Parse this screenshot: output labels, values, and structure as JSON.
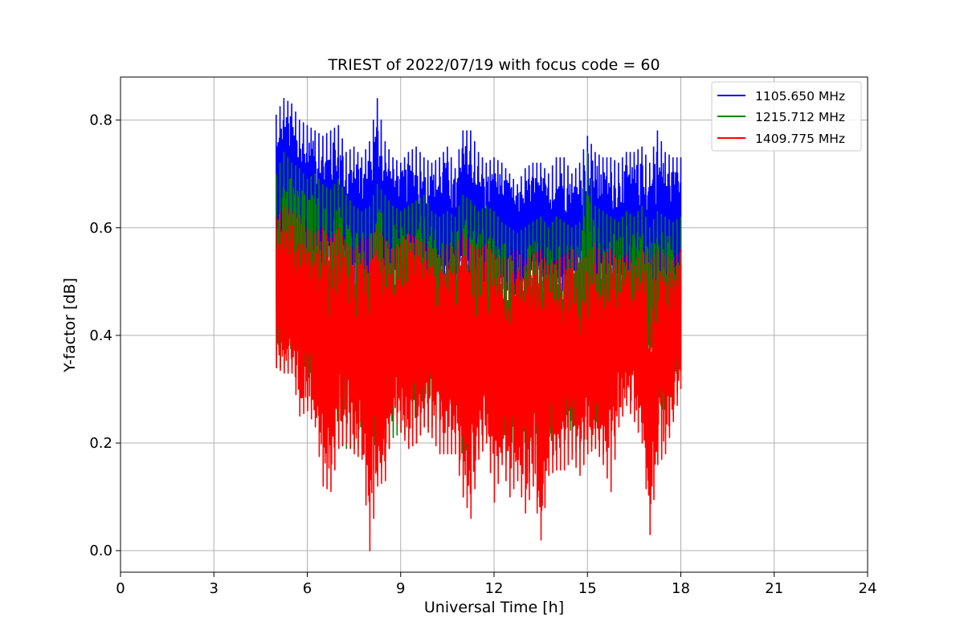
{
  "chart_data": {
    "type": "line",
    "title": "TRIEST of 2022/07/19 with focus code = 60",
    "xlabel": "Universal Time [h]",
    "ylabel": "Y-factor [dB]",
    "xlim": [
      0,
      24
    ],
    "ylim": [
      -0.04,
      0.88
    ],
    "xticks": [
      0,
      3,
      6,
      9,
      12,
      15,
      18,
      21,
      24
    ],
    "xtick_labels": [
      "0",
      "3",
      "6",
      "9",
      "12",
      "15",
      "18",
      "21",
      "24"
    ],
    "yticks": [
      0.0,
      0.2,
      0.4,
      0.6,
      0.8
    ],
    "ytick_labels": [
      "0.0",
      "0.2",
      "0.4",
      "0.6",
      "0.8"
    ],
    "grid": true,
    "legend_position": "top-right",
    "series": [
      {
        "name": "1105.650 MHz",
        "color": "#0000ff",
        "x": [
          5.0,
          5.25,
          5.5,
          5.75,
          6.0,
          6.25,
          6.5,
          6.75,
          7.0,
          7.25,
          7.5,
          7.75,
          8.0,
          8.25,
          8.5,
          8.75,
          9.0,
          9.25,
          9.5,
          9.75,
          10.0,
          10.25,
          10.5,
          10.75,
          11.0,
          11.25,
          11.5,
          11.75,
          12.0,
          12.25,
          12.5,
          12.75,
          13.0,
          13.25,
          13.5,
          13.75,
          14.0,
          14.25,
          14.5,
          14.75,
          15.0,
          15.25,
          15.5,
          15.75,
          16.0,
          16.25,
          16.5,
          16.75,
          17.0,
          17.25,
          17.5,
          17.75,
          18.0
        ],
        "ymax": [
          0.81,
          0.84,
          0.83,
          0.8,
          0.79,
          0.78,
          0.77,
          0.78,
          0.79,
          0.74,
          0.75,
          0.73,
          0.76,
          0.84,
          0.76,
          0.73,
          0.72,
          0.74,
          0.75,
          0.73,
          0.72,
          0.73,
          0.75,
          0.71,
          0.78,
          0.78,
          0.74,
          0.72,
          0.73,
          0.72,
          0.7,
          0.68,
          0.71,
          0.72,
          0.72,
          0.7,
          0.73,
          0.73,
          0.7,
          0.72,
          0.77,
          0.74,
          0.73,
          0.73,
          0.72,
          0.74,
          0.74,
          0.75,
          0.72,
          0.78,
          0.74,
          0.73,
          0.73
        ],
        "ymin": [
          0.46,
          0.5,
          0.53,
          0.5,
          0.49,
          0.5,
          0.48,
          0.47,
          0.48,
          0.46,
          0.47,
          0.45,
          0.44,
          0.46,
          0.47,
          0.48,
          0.49,
          0.47,
          0.46,
          0.45,
          0.47,
          0.48,
          0.46,
          0.45,
          0.46,
          0.47,
          0.45,
          0.46,
          0.46,
          0.47,
          0.46,
          0.45,
          0.45,
          0.46,
          0.45,
          0.44,
          0.45,
          0.46,
          0.45,
          0.46,
          0.47,
          0.45,
          0.44,
          0.45,
          0.46,
          0.44,
          0.43,
          0.4,
          0.42,
          0.43,
          0.44,
          0.45,
          0.46
        ]
      },
      {
        "name": "1215.712 MHz",
        "color": "#008000",
        "x": [
          5.0,
          5.25,
          5.5,
          5.75,
          6.0,
          6.25,
          6.5,
          6.75,
          7.0,
          7.25,
          7.5,
          7.75,
          8.0,
          8.25,
          8.5,
          8.75,
          9.0,
          9.25,
          9.5,
          9.75,
          10.0,
          10.25,
          10.5,
          10.75,
          11.0,
          11.25,
          11.5,
          11.75,
          12.0,
          12.25,
          12.5,
          12.75,
          13.0,
          13.25,
          13.5,
          13.75,
          14.0,
          14.25,
          14.5,
          14.75,
          15.0,
          15.25,
          15.5,
          15.75,
          16.0,
          16.25,
          16.5,
          16.75,
          17.0,
          17.25,
          17.5,
          17.75,
          18.0
        ],
        "ymax": [
          0.7,
          0.74,
          0.72,
          0.71,
          0.69,
          0.7,
          0.68,
          0.67,
          0.69,
          0.66,
          0.64,
          0.63,
          0.64,
          0.68,
          0.66,
          0.64,
          0.63,
          0.64,
          0.65,
          0.66,
          0.63,
          0.62,
          0.63,
          0.62,
          0.66,
          0.65,
          0.63,
          0.64,
          0.63,
          0.61,
          0.6,
          0.59,
          0.6,
          0.61,
          0.62,
          0.6,
          0.62,
          0.61,
          0.6,
          0.61,
          0.74,
          0.64,
          0.63,
          0.62,
          0.61,
          0.63,
          0.62,
          0.64,
          0.6,
          0.63,
          0.62,
          0.61,
          0.62
        ],
        "ymin": [
          0.34,
          0.34,
          0.34,
          0.3,
          0.28,
          0.27,
          0.23,
          0.2,
          0.2,
          0.19,
          0.19,
          0.19,
          0.16,
          0.14,
          0.17,
          0.21,
          0.22,
          0.21,
          0.2,
          0.23,
          0.23,
          0.24,
          0.23,
          0.22,
          0.1,
          0.18,
          0.19,
          0.22,
          0.15,
          0.18,
          0.16,
          0.18,
          0.14,
          0.15,
          0.13,
          0.16,
          0.19,
          0.2,
          0.18,
          0.19,
          0.2,
          0.19,
          0.18,
          0.23,
          0.28,
          0.3,
          0.29,
          0.26,
          0.28,
          0.2,
          0.22,
          0.25,
          0.33
        ]
      },
      {
        "name": "1409.775 MHz",
        "color": "#ff0000",
        "x": [
          5.0,
          5.25,
          5.5,
          5.75,
          6.0,
          6.25,
          6.5,
          6.75,
          7.0,
          7.25,
          7.5,
          7.75,
          8.0,
          8.25,
          8.5,
          8.75,
          9.0,
          9.25,
          9.5,
          9.75,
          10.0,
          10.25,
          10.5,
          10.75,
          11.0,
          11.25,
          11.5,
          11.75,
          12.0,
          12.25,
          12.5,
          12.75,
          13.0,
          13.25,
          13.5,
          13.75,
          14.0,
          14.25,
          14.5,
          14.75,
          15.0,
          15.25,
          15.5,
          15.75,
          16.0,
          16.25,
          16.5,
          16.75,
          17.0,
          17.25,
          17.5,
          17.75,
          18.0
        ],
        "ymax": [
          0.62,
          0.64,
          0.63,
          0.62,
          0.6,
          0.59,
          0.6,
          0.58,
          0.6,
          0.57,
          0.56,
          0.58,
          0.58,
          0.6,
          0.58,
          0.56,
          0.57,
          0.59,
          0.58,
          0.57,
          0.56,
          0.55,
          0.57,
          0.56,
          0.59,
          0.57,
          0.56,
          0.57,
          0.55,
          0.54,
          0.55,
          0.56,
          0.54,
          0.55,
          0.56,
          0.53,
          0.54,
          0.55,
          0.56,
          0.54,
          0.55,
          0.57,
          0.55,
          0.56,
          0.54,
          0.55,
          0.53,
          0.56,
          0.54,
          0.56,
          0.55,
          0.54,
          0.56
        ],
        "ymin": [
          0.34,
          0.33,
          0.33,
          0.25,
          0.26,
          0.23,
          0.12,
          0.11,
          0.19,
          0.2,
          0.18,
          0.17,
          0.0,
          0.12,
          0.13,
          0.25,
          0.22,
          0.19,
          0.2,
          0.23,
          0.21,
          0.18,
          0.18,
          0.18,
          0.1,
          0.06,
          0.17,
          0.2,
          0.09,
          0.16,
          0.1,
          0.13,
          0.07,
          0.12,
          0.02,
          0.14,
          0.15,
          0.15,
          0.17,
          0.14,
          0.18,
          0.19,
          0.16,
          0.11,
          0.23,
          0.27,
          0.24,
          0.2,
          0.03,
          0.16,
          0.18,
          0.24,
          0.3
        ]
      }
    ]
  }
}
